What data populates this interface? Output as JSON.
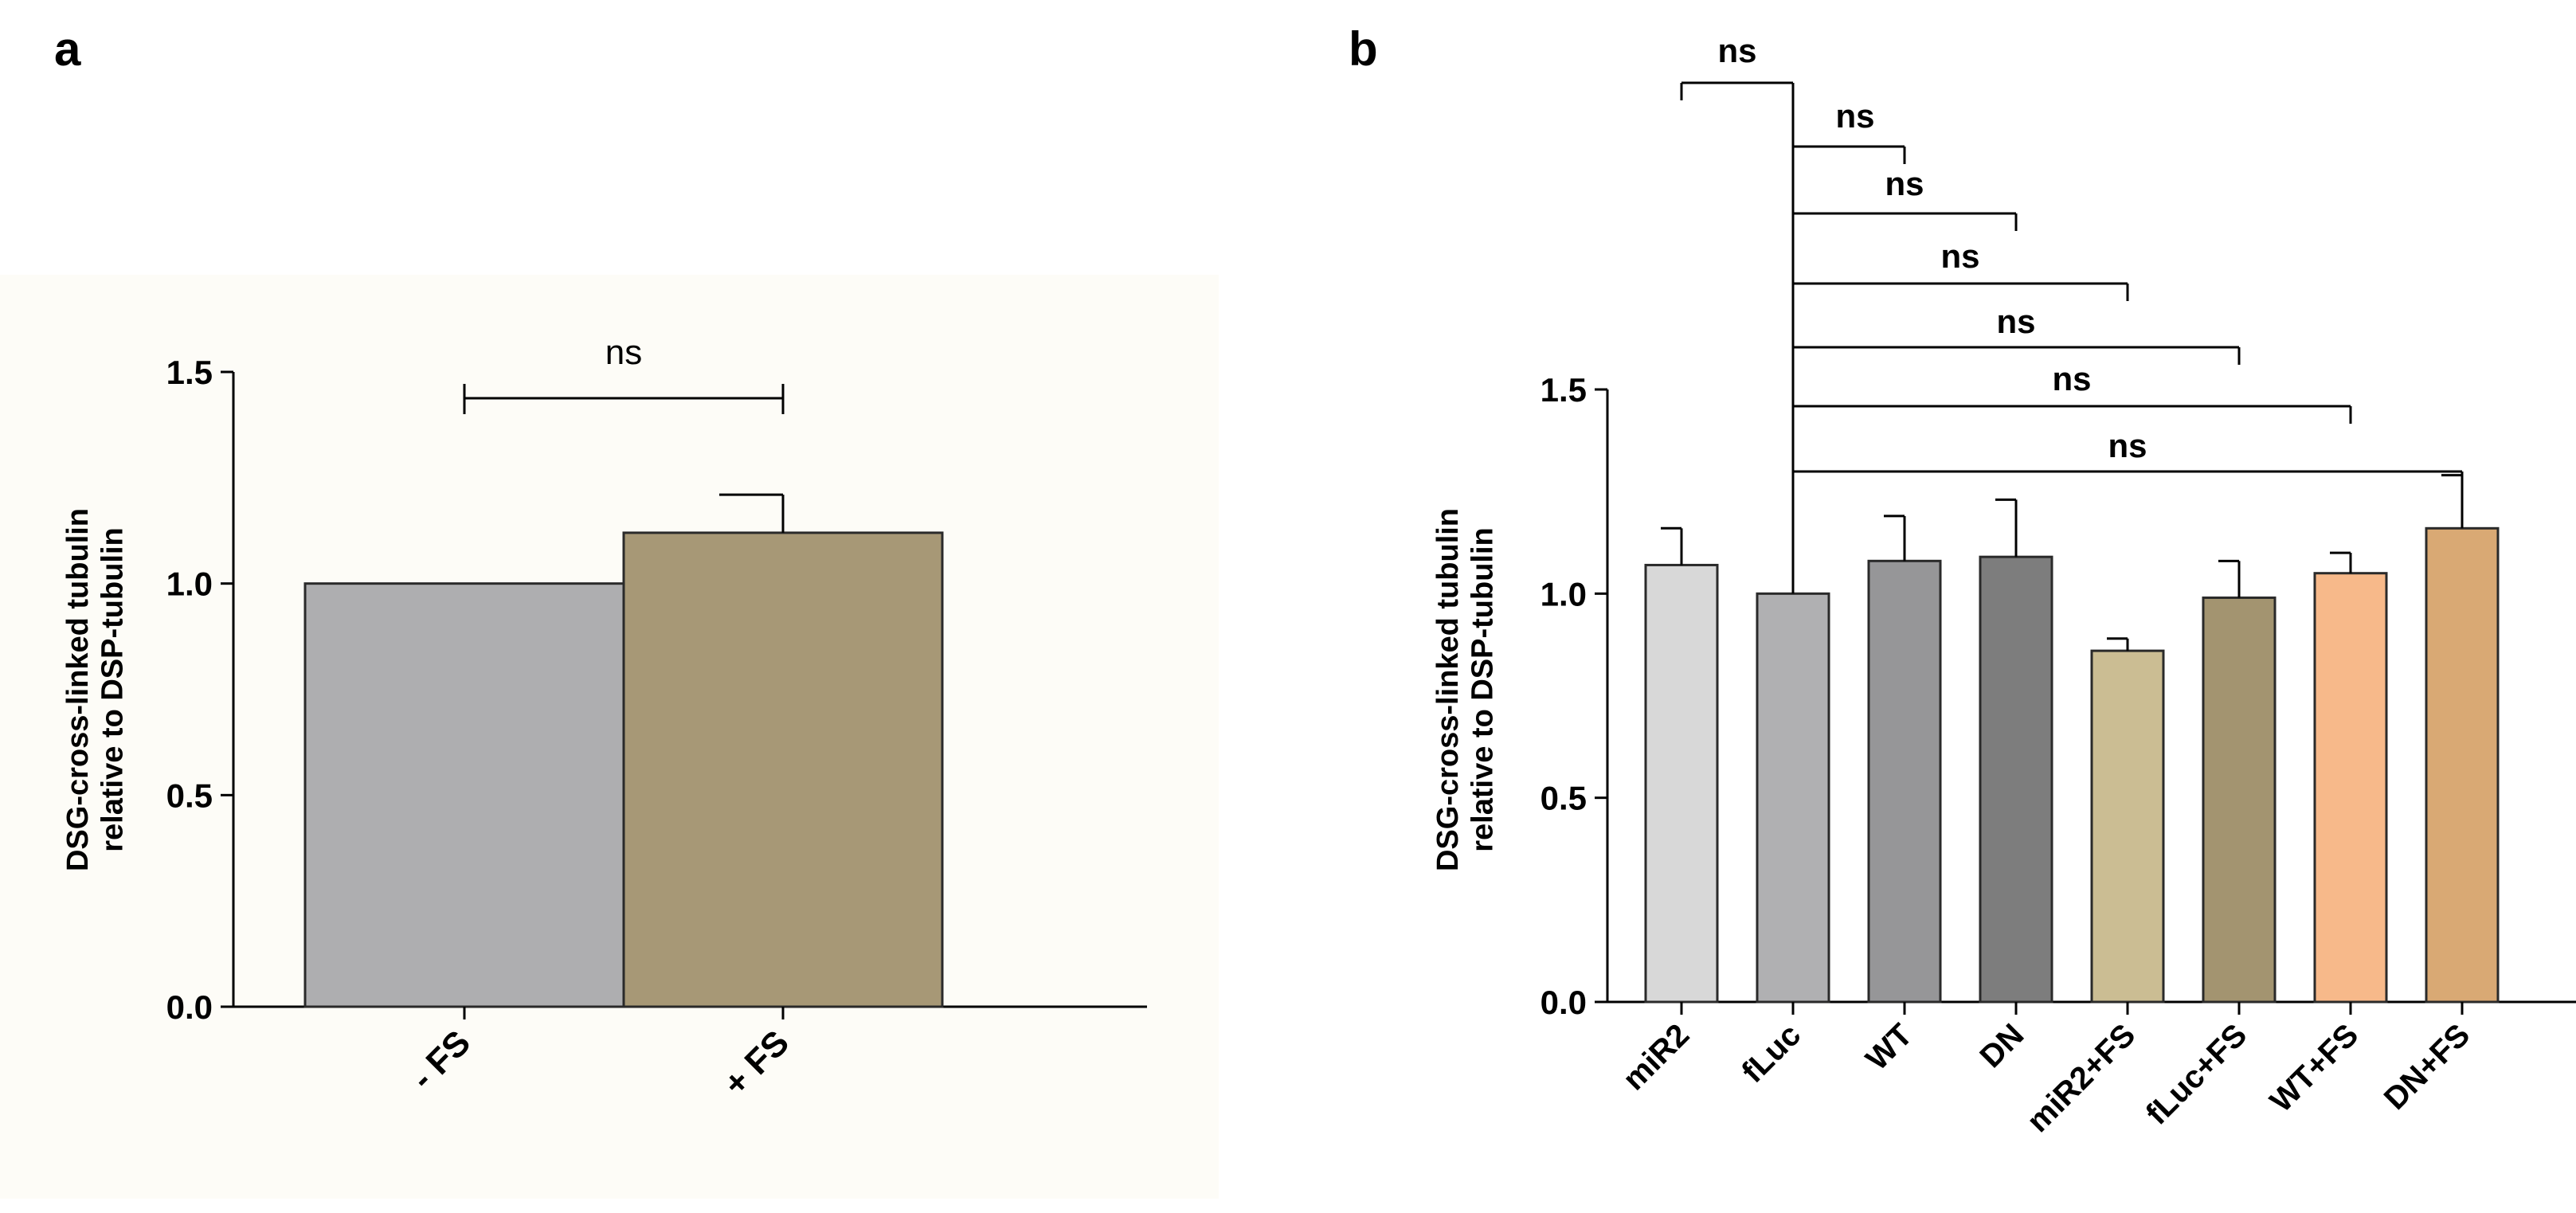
{
  "figure_labels": [
    "a",
    "b"
  ],
  "chart_data": [
    {
      "type": "bar",
      "panel": "a",
      "ylabel": "DSG-cross-linked tubulin relative to DSP-tubulin",
      "ylabel_lines": [
        "DSG-cross-linked tubulin",
        "relative to DSP-tubulin"
      ],
      "ylim": [
        0,
        1.5
      ],
      "yticks": [
        "0.0",
        "0.5",
        "1.0",
        "1.5"
      ],
      "categories": [
        "- FS",
        "+ FS"
      ],
      "values": [
        1.0,
        1.12
      ],
      "errors": [
        0.0,
        0.09
      ],
      "colors": [
        "#aeaeb0",
        "#a79876"
      ],
      "comparisons": [
        {
          "from": 0,
          "to": 1,
          "label": "ns"
        }
      ]
    },
    {
      "type": "bar",
      "panel": "b",
      "ylabel": "DSG-cross-linked tubulin relative to DSP-tubulin",
      "ylabel_lines": [
        "DSG-cross-linked tubulin",
        "relative to DSP-tubulin"
      ],
      "ylim": [
        0,
        1.5
      ],
      "yticks": [
        "0.0",
        "0.5",
        "1.0",
        "1.5"
      ],
      "categories": [
        "miR2",
        "fLuc",
        "WT",
        "DN",
        "miR2+FS",
        "fLuc+FS",
        "WT+FS",
        "DN+FS"
      ],
      "values": [
        1.07,
        1.0,
        1.08,
        1.09,
        0.86,
        0.99,
        1.05,
        1.16
      ],
      "errors": [
        0.09,
        0.0,
        0.11,
        0.14,
        0.03,
        0.09,
        0.05,
        0.13
      ],
      "colors": [
        "#d8d8d8",
        "#b0b0b2",
        "#969698",
        "#7d7d7d",
        "#cbbd93",
        "#a39470",
        "#f7b98a",
        "#d9a974"
      ],
      "comparisons": [
        {
          "from": 1,
          "to": 0,
          "label": "ns"
        },
        {
          "from": 1,
          "to": 2,
          "label": "ns"
        },
        {
          "from": 1,
          "to": 3,
          "label": "ns"
        },
        {
          "from": 1,
          "to": 4,
          "label": "ns"
        },
        {
          "from": 1,
          "to": 5,
          "label": "ns"
        },
        {
          "from": 1,
          "to": 6,
          "label": "ns"
        },
        {
          "from": 1,
          "to": 7,
          "label": "ns"
        }
      ]
    }
  ]
}
